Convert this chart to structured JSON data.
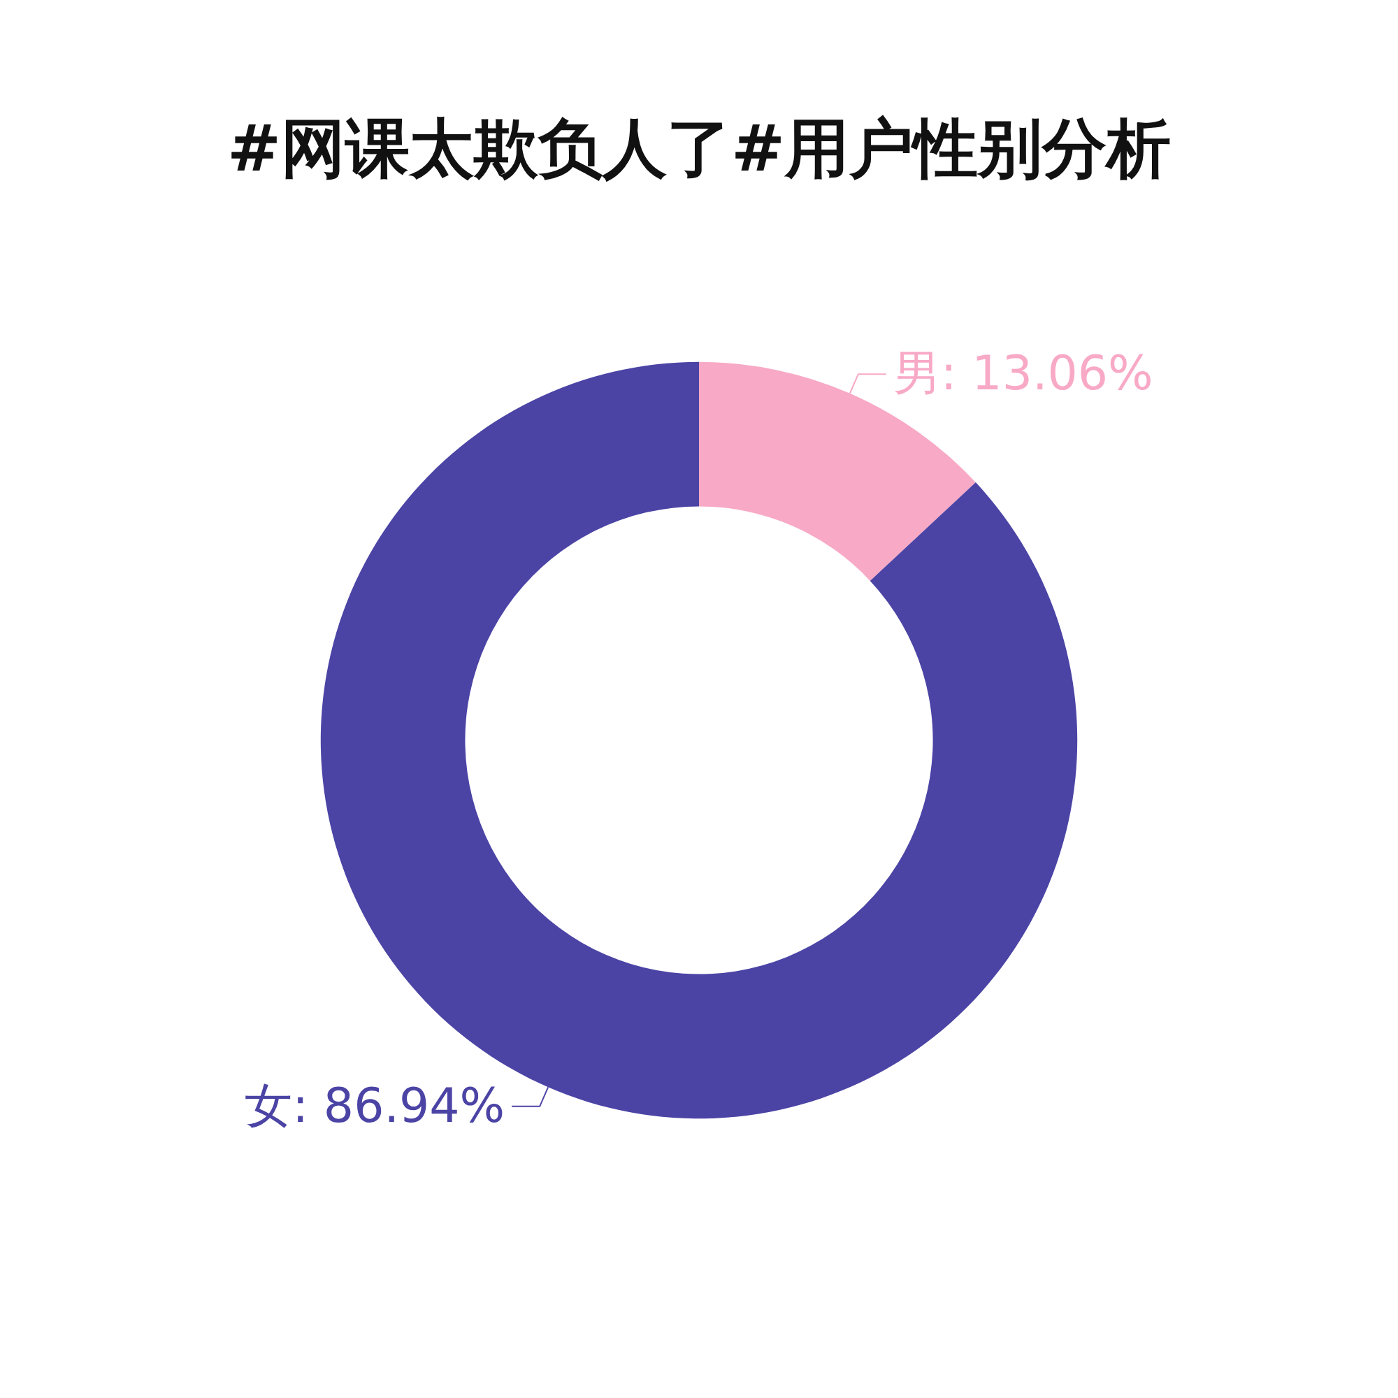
{
  "chart_data": {
    "type": "donut",
    "title": "#网课太欺负人了#用户性别分析",
    "categories": [
      "男",
      "女"
    ],
    "values": [
      13.06,
      86.94
    ],
    "colors": [
      "#f8a9c6",
      "#4b44a5"
    ],
    "value_labels": [
      ": 13.06%",
      ": 86.94%"
    ],
    "legend": false
  }
}
